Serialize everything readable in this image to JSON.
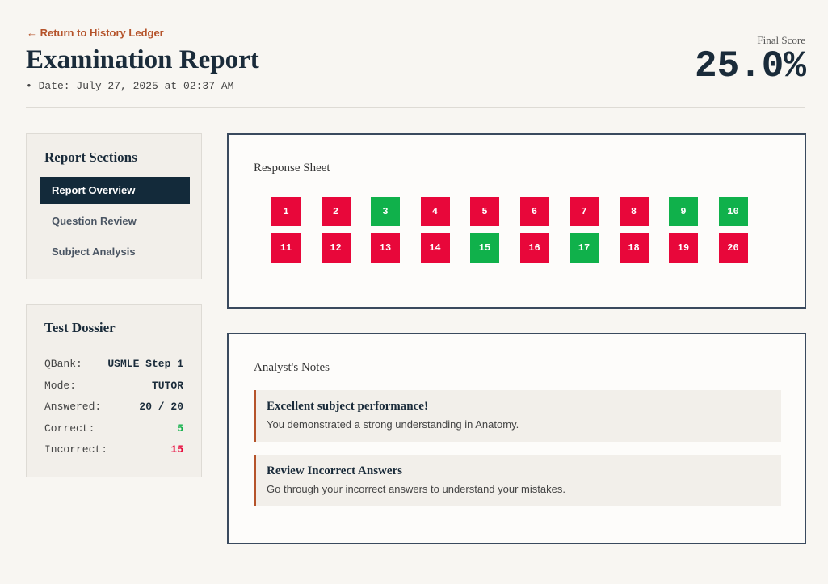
{
  "header": {
    "back_link": "← Return to History Ledger",
    "title": "Examination Report",
    "date": "• Date: July 27, 2025 at 02:37 AM",
    "score_label": "Final Score",
    "score": "25.0%"
  },
  "nav": {
    "title": "Report Sections",
    "items": [
      {
        "label": "Report Overview",
        "active": true
      },
      {
        "label": "Question Review",
        "active": false
      },
      {
        "label": "Subject Analysis",
        "active": false
      }
    ]
  },
  "dossier": {
    "title": "Test Dossier",
    "rows": [
      {
        "label": "QBank:",
        "value": "USMLE Step 1",
        "tone": "normal"
      },
      {
        "label": "Mode:",
        "value": "TUTOR",
        "tone": "normal"
      },
      {
        "label": "Answered:",
        "value": "20 / 20",
        "tone": "normal"
      },
      {
        "label": "Correct:",
        "value": "5",
        "tone": "good"
      },
      {
        "label": "Incorrect:",
        "value": "15",
        "tone": "bad"
      }
    ]
  },
  "response_sheet": {
    "title": "Response Sheet",
    "questions": [
      {
        "number": "1",
        "status": "incorrect"
      },
      {
        "number": "2",
        "status": "incorrect"
      },
      {
        "number": "3",
        "status": "correct"
      },
      {
        "number": "4",
        "status": "incorrect"
      },
      {
        "number": "5",
        "status": "incorrect"
      },
      {
        "number": "6",
        "status": "incorrect"
      },
      {
        "number": "7",
        "status": "incorrect"
      },
      {
        "number": "8",
        "status": "incorrect"
      },
      {
        "number": "9",
        "status": "correct"
      },
      {
        "number": "10",
        "status": "correct"
      },
      {
        "number": "11",
        "status": "incorrect"
      },
      {
        "number": "12",
        "status": "incorrect"
      },
      {
        "number": "13",
        "status": "incorrect"
      },
      {
        "number": "14",
        "status": "incorrect"
      },
      {
        "number": "15",
        "status": "correct"
      },
      {
        "number": "16",
        "status": "incorrect"
      },
      {
        "number": "17",
        "status": "correct"
      },
      {
        "number": "18",
        "status": "incorrect"
      },
      {
        "number": "19",
        "status": "incorrect"
      },
      {
        "number": "20",
        "status": "incorrect"
      }
    ]
  },
  "notes": {
    "title": "Analyst's Notes",
    "items": [
      {
        "title": "Excellent subject performance!",
        "text": "You demonstrated a strong understanding in Anatomy."
      },
      {
        "title": "Review Incorrect Answers",
        "text": "Go through your incorrect answers to understand your mistakes."
      }
    ]
  }
}
